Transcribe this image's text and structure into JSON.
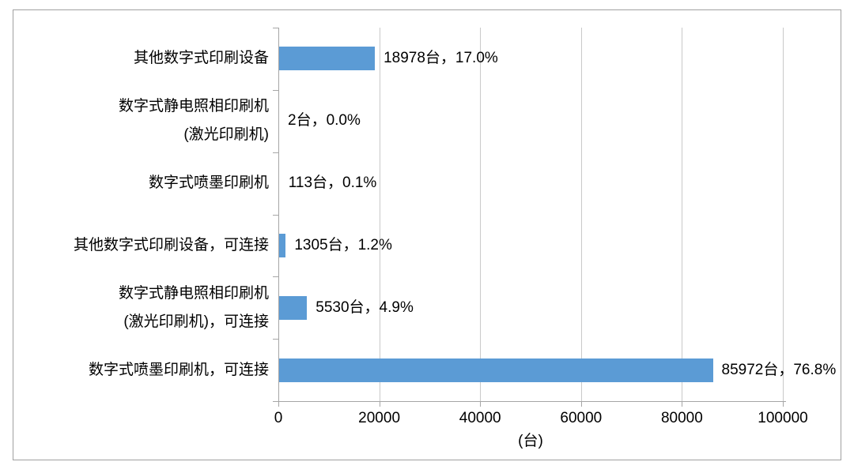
{
  "chart_data": {
    "type": "bar",
    "orientation": "horizontal",
    "title": "",
    "categories": [
      "其他数字式印刷设备",
      "数字式静电照相印刷机\n(激光印刷机)",
      "数字式喷墨印刷机",
      "其他数字式印刷设备，可连接",
      "数字式静电照相印刷机\n(激光印刷机)，可连接",
      "数字式喷墨印刷机，可连接"
    ],
    "values": [
      18978,
      2,
      113,
      1305,
      5530,
      85972
    ],
    "percentages": [
      "17.0%",
      "0.0%",
      "0.1%",
      "1.2%",
      "4.9%",
      "76.8%"
    ],
    "data_labels": [
      "18978台，17.0%",
      "2台，0.0%",
      "113台，0.1%",
      "1305台，1.2%",
      "5530台，4.9%",
      "85972台，76.8%"
    ],
    "x_ticks": [
      0,
      20000,
      40000,
      60000,
      80000,
      100000
    ],
    "xlim": [
      0,
      100000
    ],
    "xlabel": "(台)",
    "ylabel": "",
    "grid": "vertical-gridlines-on",
    "legend_position": "none",
    "bar_color": "#5B9BD5",
    "gridline_color": "#C9C9C9",
    "axis_color": "#A6A6A6",
    "frame_border_color": "#A0A0A0",
    "text_color": "#000000"
  }
}
